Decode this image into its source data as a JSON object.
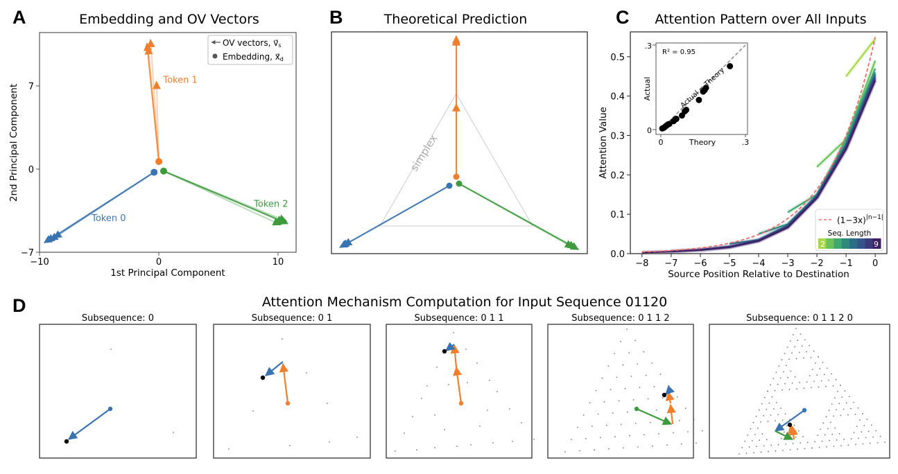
{
  "figure": {
    "panel_letters": [
      "A",
      "B",
      "C",
      "D"
    ],
    "colors": {
      "token0": "#3a74b0",
      "token1": "#f07f2d",
      "token2": "#3d9a3d",
      "embedding_point": "#000000",
      "simplex": "#cccccc",
      "theory_curve": "#ef6b6b",
      "lattice_dot": "#777777"
    }
  },
  "chart_data": [
    {
      "id": "A",
      "type": "scatter",
      "title": "Embedding and OV Vectors",
      "xlabel": "1st Principal Component",
      "ylabel": "2nd Principal Component",
      "xlim": [
        -10,
        11.5
      ],
      "ylim": [
        -7,
        11.4
      ],
      "xticks": [
        -10,
        0,
        10
      ],
      "yticks": [
        -7,
        0,
        7
      ],
      "xtick_labels": [
        "−10",
        "0",
        "10"
      ],
      "ytick_labels": [
        "−7",
        "0",
        "7"
      ],
      "legend": {
        "placement": "top-right",
        "entries": [
          {
            "marker": "arrow",
            "label": "OV vectors, v⃗",
            "sub": "s"
          },
          {
            "marker": "dot",
            "label": "Embedding, x⃗",
            "sub": "d"
          }
        ]
      },
      "series": [
        {
          "name": "Token 0",
          "color_key": "token0",
          "embedding": [
            -0.4,
            -0.3
          ],
          "ov_tips": [
            [
              -9.4,
              -6.1
            ],
            [
              -9.1,
              -6.0
            ],
            [
              -8.8,
              -5.8
            ],
            [
              -9.6,
              -6.2
            ]
          ],
          "label_pos": [
            -4.2,
            -4.4
          ]
        },
        {
          "name": "Token 1",
          "color_key": "token1",
          "embedding": [
            0.0,
            0.6
          ],
          "ov_tips": [
            [
              -1.0,
              10.5
            ],
            [
              -0.7,
              10.8
            ],
            [
              -0.9,
              10.2
            ],
            [
              -0.2,
              7.3
            ]
          ],
          "label_pos": [
            1.8,
            7.2
          ]
        },
        {
          "name": "Token 2",
          "color_key": "token2",
          "embedding": [
            0.4,
            -0.2
          ],
          "ov_tips": [
            [
              10.8,
              -4.6
            ],
            [
              10.5,
              -4.5
            ],
            [
              10.2,
              -4.7
            ],
            [
              10.7,
              -4.4
            ]
          ],
          "label_pos": [
            9.4,
            -3.2
          ]
        }
      ]
    },
    {
      "id": "B",
      "type": "scatter",
      "title": "Theoretical Prediction",
      "simplex_label": "simplex",
      "series": [
        {
          "name": "Token 0",
          "color_key": "token0"
        },
        {
          "name": "Token 1",
          "color_key": "token1"
        },
        {
          "name": "Token 2",
          "color_key": "token2"
        }
      ]
    },
    {
      "id": "C",
      "type": "line",
      "title": "Attention Pattern over All Inputs",
      "xlabel": "Source Position Relative to Destination",
      "ylabel": "Attention Value",
      "xlim": [
        -8.4,
        0.4
      ],
      "ylim": [
        0,
        0.563
      ],
      "xticks": [
        -8,
        -7,
        -6,
        -5,
        -4,
        -3,
        -2,
        -1,
        0
      ],
      "xtick_labels": [
        "−8",
        "−7",
        "−6",
        "−5",
        "−4",
        "−3",
        "−2",
        "−1",
        "0"
      ],
      "yticks": [
        0.0,
        0.1,
        0.2,
        0.3,
        0.4,
        0.5
      ],
      "ytick_labels": [
        "0.0",
        "0.1",
        "0.2",
        "0.3",
        "0.4",
        "0.5"
      ],
      "theory": {
        "label": "(1−3x)",
        "exponent": "|n−1|",
        "x": [
          -8,
          -7,
          -6,
          -5,
          -4,
          -3,
          -2,
          -1,
          0
        ],
        "y": [
          0.003,
          0.007,
          0.014,
          0.026,
          0.048,
          0.089,
          0.163,
          0.3,
          0.55
        ]
      },
      "legend": {
        "placement": "bottom-right",
        "colorbar_title": "Seq. Length",
        "colorbar_min_label": "2",
        "colorbar_max_label": "9",
        "colorbar_colors": [
          "#a8d84a",
          "#6bc25a",
          "#3fa86f",
          "#2e8b7c",
          "#2b6f86",
          "#33558a",
          "#3b3a7e",
          "#3e1f63"
        ]
      },
      "series": [
        {
          "name": "2",
          "x": [
            -1,
            0
          ],
          "y": [
            0.45,
            0.545
          ]
        },
        {
          "name": "3",
          "x": [
            -2,
            -1,
            0
          ],
          "y": [
            0.22,
            0.29,
            0.49
          ]
        },
        {
          "name": "4",
          "x": [
            -3,
            -2,
            -1,
            0
          ],
          "y": [
            0.105,
            0.15,
            0.29,
            0.47
          ]
        },
        {
          "name": "5",
          "x": [
            -4,
            -3,
            -2,
            -1,
            0
          ],
          "y": [
            0.05,
            0.075,
            0.148,
            0.28,
            0.46
          ]
        },
        {
          "name": "6",
          "x": [
            -5,
            -4,
            -3,
            -2,
            -1,
            0
          ],
          "y": [
            0.025,
            0.035,
            0.072,
            0.146,
            0.275,
            0.455
          ]
        },
        {
          "name": "7",
          "x": [
            -6,
            -5,
            -4,
            -3,
            -2,
            -1,
            0
          ],
          "y": [
            0.01,
            0.018,
            0.034,
            0.07,
            0.145,
            0.27,
            0.45
          ]
        },
        {
          "name": "8",
          "x": [
            -7,
            -6,
            -5,
            -4,
            -3,
            -2,
            -1,
            0
          ],
          "y": [
            0.006,
            0.01,
            0.017,
            0.033,
            0.068,
            0.143,
            0.268,
            0.445
          ]
        },
        {
          "name": "9",
          "x": [
            -8,
            -7,
            -6,
            -5,
            -4,
            -3,
            -2,
            -1,
            0
          ],
          "y": [
            0.003,
            0.005,
            0.009,
            0.016,
            0.032,
            0.066,
            0.141,
            0.265,
            0.44
          ]
        }
      ],
      "inset": {
        "type": "scatter",
        "xlabel": "Theory",
        "ylabel": "Actual",
        "xlim": [
          0,
          0.3
        ],
        "ylim": [
          0,
          0.3
        ],
        "xtick_labels": [
          "0",
          ".3"
        ],
        "ytick_labels": [
          "0",
          ".3"
        ],
        "annotation": "R² = 0.95",
        "diagonal_label": "Actual = Theory",
        "points": [
          [
            0.005,
            0.004
          ],
          [
            0.01,
            0.006
          ],
          [
            0.015,
            0.01
          ],
          [
            0.02,
            0.014
          ],
          [
            0.025,
            0.018
          ],
          [
            0.03,
            0.02
          ],
          [
            0.045,
            0.03
          ],
          [
            0.05,
            0.035
          ],
          [
            0.055,
            0.038
          ],
          [
            0.075,
            0.05
          ],
          [
            0.085,
            0.065
          ],
          [
            0.09,
            0.07
          ],
          [
            0.135,
            0.105
          ],
          [
            0.15,
            0.135
          ],
          [
            0.155,
            0.14
          ],
          [
            0.16,
            0.148
          ],
          [
            0.245,
            0.225
          ]
        ]
      }
    },
    {
      "id": "D",
      "type": "scatter",
      "title": "Attention Mechanism Computation for Input Sequence 01120",
      "subplots": [
        {
          "title": "Subsequence: 0",
          "subsequence": "0"
        },
        {
          "title": "Subsequence: 0 1",
          "subsequence": "0 1"
        },
        {
          "title": "Subsequence: 0 1 1",
          "subsequence": "0 1 1"
        },
        {
          "title": "Subsequence: 0 1 1 2",
          "subsequence": "0 1 1 2"
        },
        {
          "title": "Subsequence: 0 1 1 2 0",
          "subsequence": "0 1 1 2 0"
        }
      ]
    }
  ]
}
